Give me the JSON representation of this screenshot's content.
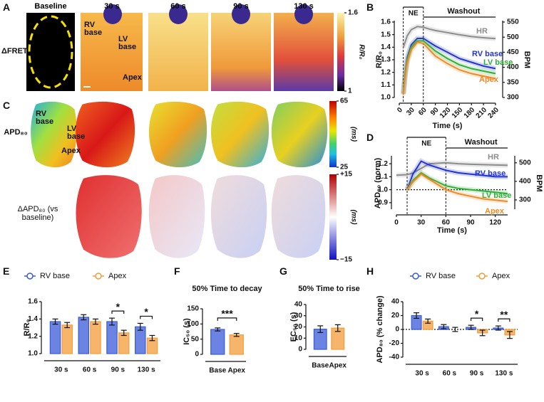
{
  "panel_labels": [
    "A",
    "B",
    "C",
    "D",
    "E",
    "F",
    "G",
    "H"
  ],
  "imaging": {
    "timepoints": [
      "Baseline",
      "30 s",
      "60 s",
      "90 s",
      "130 s"
    ],
    "rows": [
      {
        "label": "ΔFRET",
        "annotations": [
          "RV base",
          "LV base",
          "Apex"
        ],
        "colorbar": {
          "label": "R/R₀",
          "ticks": [
            1.6,
            1
          ]
        }
      },
      {
        "label": "APD₈₀",
        "annotations": [
          "RV base",
          "LV base",
          "Apex"
        ],
        "colorbar": {
          "label": "(ms)",
          "ticks": [
            65,
            25
          ]
        }
      },
      {
        "label": "ΔAPD₈₀ (vs baseline)",
        "colorbar": {
          "label": "(ms)",
          "ticks": [
            {
              "value": 15,
              "label": "+15"
            },
            {
              "value": -15,
              "label": "−15"
            }
          ]
        }
      }
    ]
  },
  "chart_data": [
    {
      "type": "line",
      "xlabel": "Time (s)",
      "ylabel": "R/R₀",
      "y2label": "BPM",
      "x": [
        10,
        15,
        20,
        30,
        45,
        60,
        75,
        90,
        120,
        150,
        180,
        210,
        240
      ],
      "xlim": [
        0,
        240
      ],
      "xticks": [
        0,
        30,
        60,
        90,
        120,
        150,
        180,
        210,
        240
      ],
      "ylim": [
        1,
        1.6
      ],
      "yticks": [
        {
          "value": 1,
          "label": "1.0"
        },
        1.1,
        1.2,
        1.3,
        1.4,
        1.5,
        1.6
      ],
      "y2lim": [
        300,
        550
      ],
      "y2ticks": [
        300,
        350,
        400,
        450,
        500,
        550
      ],
      "series": [
        {
          "name": "HR",
          "color": "#8c8c8c",
          "axis": "y2",
          "values": [
            465,
            485,
            505,
            525,
            535,
            533,
            527,
            522,
            515,
            508,
            502,
            498,
            495
          ]
        },
        {
          "name": "RV base",
          "color": "#2233d6",
          "values": [
            1.03,
            1.2,
            1.32,
            1.42,
            1.47,
            1.47,
            1.44,
            1.41,
            1.36,
            1.31,
            1.28,
            1.25,
            1.23
          ]
        },
        {
          "name": "LV base",
          "color": "#2fae3a",
          "values": [
            1.03,
            1.19,
            1.3,
            1.4,
            1.45,
            1.45,
            1.41,
            1.37,
            1.31,
            1.26,
            1.23,
            1.21,
            1.19
          ]
        },
        {
          "name": "Apex",
          "color": "#f08a24",
          "values": [
            1.02,
            1.17,
            1.28,
            1.38,
            1.44,
            1.43,
            1.38,
            1.33,
            1.27,
            1.22,
            1.19,
            1.17,
            1.15
          ]
        }
      ],
      "spans": [
        {
          "label": "NE",
          "start": 10,
          "end": 60
        },
        {
          "label": "Washout",
          "start": 60,
          "end": 240
        }
      ]
    },
    {
      "type": "line",
      "xlabel": "Time (s)",
      "ylabel": "APD₈₀ (norm)",
      "y2label": "BPM",
      "x": [
        0,
        13,
        20,
        30,
        40,
        60,
        75,
        90,
        105,
        120,
        135
      ],
      "xlim": [
        0,
        135
      ],
      "xticks": [
        0,
        30,
        60,
        90,
        120
      ],
      "ylim": [
        0.85,
        1.25
      ],
      "yticks": [
        0.9,
        {
          "value": 1,
          "label": "1.0"
        },
        1.1,
        1.2
      ],
      "y2lim": [
        250,
        530
      ],
      "y2ticks": [
        300,
        400,
        500
      ],
      "reference_line": 1,
      "series": [
        {
          "name": "HR",
          "color": "#8c8c8c",
          "axis": "y2",
          "values": [
            433,
            436,
            445,
            470,
            495,
            500,
            495,
            492,
            490,
            488,
            487
          ]
        },
        {
          "name": "RV base",
          "color": "#2233d6",
          "values": [
            null,
            1,
            1.12,
            1.22,
            1.19,
            1.15,
            1.13,
            1.12,
            1.11,
            1.1,
            1.1
          ]
        },
        {
          "name": "LV base",
          "color": "#2fae3a",
          "values": [
            null,
            1,
            1.07,
            1.13,
            1.09,
            1.03,
            1.01,
            1,
            0.99,
            0.98,
            0.97
          ]
        },
        {
          "name": "Apex",
          "color": "#f08a24",
          "values": [
            null,
            1,
            1.06,
            1.12,
            1.08,
            1,
            0.97,
            0.95,
            0.93,
            0.92,
            0.91
          ]
        }
      ],
      "spans": [
        {
          "label": "NE",
          "start": 13,
          "end": 60
        },
        {
          "label": "Washout",
          "start": 60,
          "end": 135
        }
      ]
    },
    {
      "type": "bar",
      "ylabel": "R/R₀",
      "categories": [
        "30 s",
        "60 s",
        "90 s",
        "130 s"
      ],
      "ylim": [
        1,
        1.6
      ],
      "yticks": [
        {
          "value": 1,
          "label": "1.0"
        },
        1.2,
        1.4,
        1.6
      ],
      "series": [
        {
          "name": "RV base",
          "color": "#3a5bd9",
          "values": [
            1.37,
            1.42,
            1.37,
            1.31
          ],
          "errors": [
            0.03,
            0.03,
            0.04,
            0.04
          ]
        },
        {
          "name": "Apex",
          "color": "#f39c38",
          "values": [
            1.33,
            1.37,
            1.24,
            1.18
          ],
          "errors": [
            0.03,
            0.03,
            0.03,
            0.03
          ]
        }
      ],
      "significance": [
        {
          "category": "90 s",
          "text": "*"
        },
        {
          "category": "130 s",
          "text": "*"
        }
      ]
    },
    {
      "type": "bar",
      "title": "50% Time to decay",
      "ylabel": "IC₅₀ (s)",
      "categories": [
        "Base",
        "Apex"
      ],
      "values": [
        82,
        64
      ],
      "errors": [
        5,
        5
      ],
      "colors": [
        "#3a5bd9",
        "#f39c38"
      ],
      "ylim": [
        0,
        150
      ],
      "yticks": [
        0,
        50,
        100,
        150
      ],
      "significance": [
        {
          "between": [
            "Base",
            "Apex"
          ],
          "text": "***"
        }
      ]
    },
    {
      "type": "bar",
      "title": "50% Time to rise",
      "ylabel": "EC₅₀ (s)",
      "categories": [
        "Base",
        "Apex"
      ],
      "values": [
        18,
        19
      ],
      "errors": [
        3,
        3
      ],
      "colors": [
        "#3a5bd9",
        "#f39c38"
      ],
      "ylim": [
        0,
        40
      ],
      "yticks": [
        0,
        10,
        20,
        30,
        40
      ]
    },
    {
      "type": "bar",
      "ylabel": "APD₈₀ (% change)",
      "categories": [
        "30 s",
        "60 s",
        "90 s",
        "130 s"
      ],
      "ylim": [
        -40,
        40
      ],
      "yticks": [
        -40,
        -20,
        0,
        20,
        40
      ],
      "reference_line": 0,
      "series": [
        {
          "name": "RV base",
          "color": "#3a5bd9",
          "values": [
            20,
            4,
            3,
            2
          ],
          "errors": [
            4,
            3,
            3,
            3
          ]
        },
        {
          "name": "Apex",
          "color": "#f39c38",
          "values": [
            12,
            0,
            -5,
            -8
          ],
          "errors": [
            3,
            3,
            4,
            5
          ]
        }
      ],
      "significance": [
        {
          "category": "90 s",
          "text": "*"
        },
        {
          "category": "130 s",
          "text": "**"
        }
      ]
    }
  ]
}
